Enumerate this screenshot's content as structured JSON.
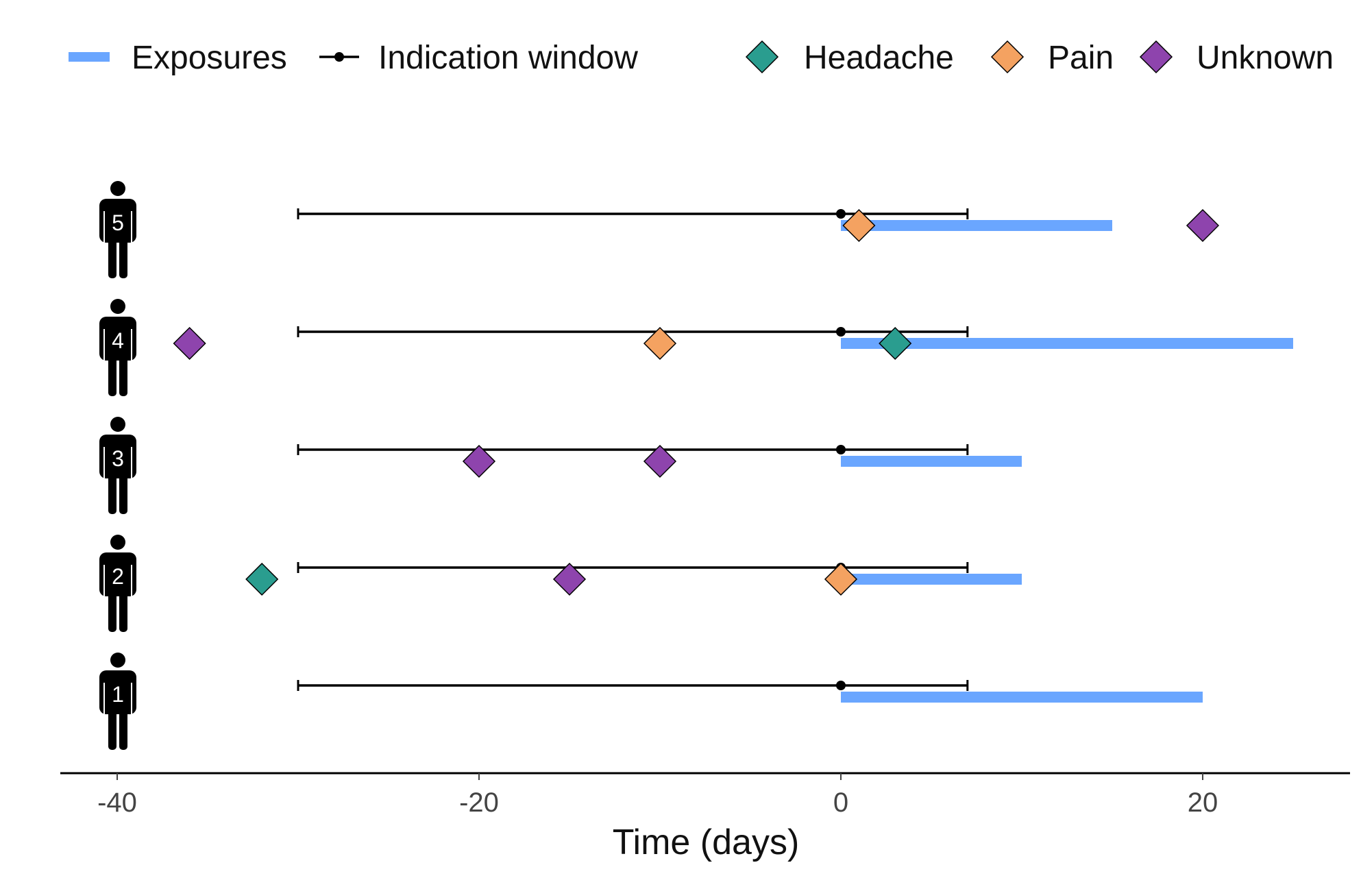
{
  "chart_data": {
    "type": "timeline",
    "xlabel": "Time (days)",
    "ylabel": "",
    "xlim": [
      -43,
      28
    ],
    "x_ticks": [
      -40,
      -20,
      0,
      20
    ],
    "legend": {
      "placement": "top",
      "items": [
        {
          "label": "Exposures",
          "kind": "bar",
          "color": "#6aa6ff"
        },
        {
          "label": "Indication window",
          "kind": "line-point",
          "color": "#000000"
        },
        {
          "label": "Headache",
          "kind": "diamond",
          "color": "#2a9d8f"
        },
        {
          "label": "Pain",
          "kind": "diamond",
          "color": "#f4a261"
        },
        {
          "label": "Unknown",
          "kind": "diamond",
          "color": "#8e44ad"
        }
      ]
    },
    "colors": {
      "Headache": "#2a9d8f",
      "Pain": "#f4a261",
      "Unknown": "#8e44ad",
      "exposure": "#6aa6ff",
      "window": "#000000"
    },
    "patients": [
      {
        "id": "1",
        "window": [
          -30,
          7
        ],
        "index": 0,
        "exposure": [
          0,
          20
        ],
        "events": []
      },
      {
        "id": "2",
        "window": [
          -30,
          7
        ],
        "index": 0,
        "exposure": [
          0,
          10
        ],
        "events": [
          {
            "x": -32,
            "type": "Headache"
          },
          {
            "x": -15,
            "type": "Unknown"
          },
          {
            "x": 0,
            "type": "Pain"
          }
        ]
      },
      {
        "id": "3",
        "window": [
          -30,
          7
        ],
        "index": 0,
        "exposure": [
          0,
          10
        ],
        "events": [
          {
            "x": -20,
            "type": "Unknown"
          },
          {
            "x": -10,
            "type": "Unknown"
          }
        ]
      },
      {
        "id": "4",
        "window": [
          -30,
          7
        ],
        "index": 0,
        "exposure": [
          0,
          25
        ],
        "events": [
          {
            "x": -36,
            "type": "Unknown"
          },
          {
            "x": -10,
            "type": "Pain"
          },
          {
            "x": 3,
            "type": "Headache"
          }
        ]
      },
      {
        "id": "5",
        "window": [
          -30,
          7
        ],
        "index": 0,
        "exposure": [
          0,
          15
        ],
        "events": [
          {
            "x": 1,
            "type": "Pain"
          },
          {
            "x": 20,
            "type": "Unknown"
          }
        ]
      }
    ]
  }
}
